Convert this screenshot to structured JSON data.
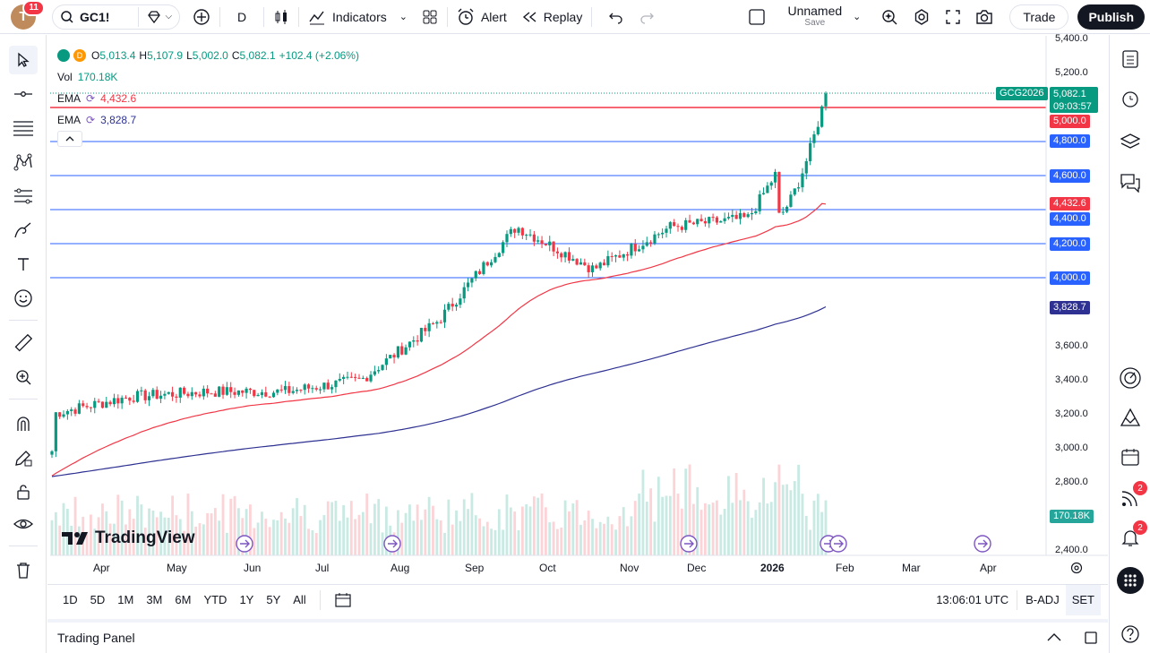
{
  "header": {
    "avatar_letter": "T",
    "notifications": "11",
    "symbol": "GC1!",
    "interval": "D",
    "indicators_label": "Indicators",
    "alert_label": "Alert",
    "replay_label": "Replay",
    "layout_name": "Unnamed",
    "layout_save": "Save",
    "trade_label": "Trade",
    "publish_label": "Publish"
  },
  "legend": {
    "dot_letter": "D",
    "open_k": "O",
    "open": "5,013.4",
    "high_k": "H",
    "high": "5,107.9",
    "low_k": "L",
    "low": "5,002.0",
    "close_k": "C",
    "close": "5,082.1",
    "change": "+102.4 (+2.06%)",
    "vol_label": "Vol",
    "vol": "170.18K",
    "ema1_label": "EMA",
    "ema1": "4,432.6",
    "ema2_label": "EMA",
    "ema2": "3,828.7"
  },
  "price_axis": [
    "5,400.0",
    "5,200.0",
    "3,600.0",
    "3,400.0",
    "3,200.0",
    "3,000.0",
    "2,800.0",
    "2,400.0"
  ],
  "price_tags": {
    "symbol_tag": "GCG2026",
    "last": "5,082.1",
    "countdown": "09:03:57",
    "l5000": "5,000.0",
    "l4800": "4,800.0",
    "l4600": "4,600.0",
    "ema1": "4,432.6",
    "l4400": "4,400.0",
    "l4200": "4,200.0",
    "l4000": "4,000.0",
    "ema2": "3,828.7",
    "vol": "170.18K"
  },
  "time_axis": [
    "Apr",
    "May",
    "Jun",
    "Jul",
    "Aug",
    "Sep",
    "Oct",
    "Nov",
    "Dec",
    "2026",
    "Feb",
    "Mar",
    "Apr"
  ],
  "bottom": {
    "ranges": [
      "1D",
      "5D",
      "1M",
      "3M",
      "6M",
      "YTD",
      "1Y",
      "5Y",
      "All"
    ],
    "clock": "13:06:01 UTC",
    "badj": "B-ADJ",
    "set": "SET",
    "trading_panel": "Trading Panel"
  },
  "logo_text": "TradingView",
  "right_badges": {
    "feed": "2",
    "alerts": "2"
  },
  "colors": {
    "up": "#089981",
    "down": "#f23645",
    "ema1": "#f23645",
    "ema2": "#2e3192",
    "hline": "#2962ff"
  },
  "chart_data": {
    "type": "candlestick",
    "symbol": "GC1!",
    "last_close": 5082.1,
    "horizontal_levels": [
      5000,
      4800,
      4600,
      4400,
      4200,
      4000
    ],
    "ema_last": [
      4432.6,
      3828.7
    ],
    "volume_last": "170.18K",
    "x_labels": [
      "Apr",
      "May",
      "Jun",
      "Jul",
      "Aug",
      "Sep",
      "Oct",
      "Nov",
      "Dec",
      "2026",
      "Feb",
      "Mar",
      "Apr"
    ],
    "monthly_close_approx": [
      {
        "x": "Apr",
        "y": 3200
      },
      {
        "x": "May",
        "y": 3300
      },
      {
        "x": "Jun",
        "y": 3330
      },
      {
        "x": "Jul",
        "y": 3330
      },
      {
        "x": "Aug",
        "y": 3400
      },
      {
        "x": "Sep",
        "y": 3750
      },
      {
        "x": "Oct",
        "y": 4300
      },
      {
        "x": "Nov",
        "y": 4050
      },
      {
        "x": "Dec",
        "y": 4300
      },
      {
        "x": "2026",
        "y": 4350
      },
      {
        "x": "Feb",
        "y": 5082.1
      }
    ],
    "ylim": [
      2400,
      5400
    ]
  }
}
